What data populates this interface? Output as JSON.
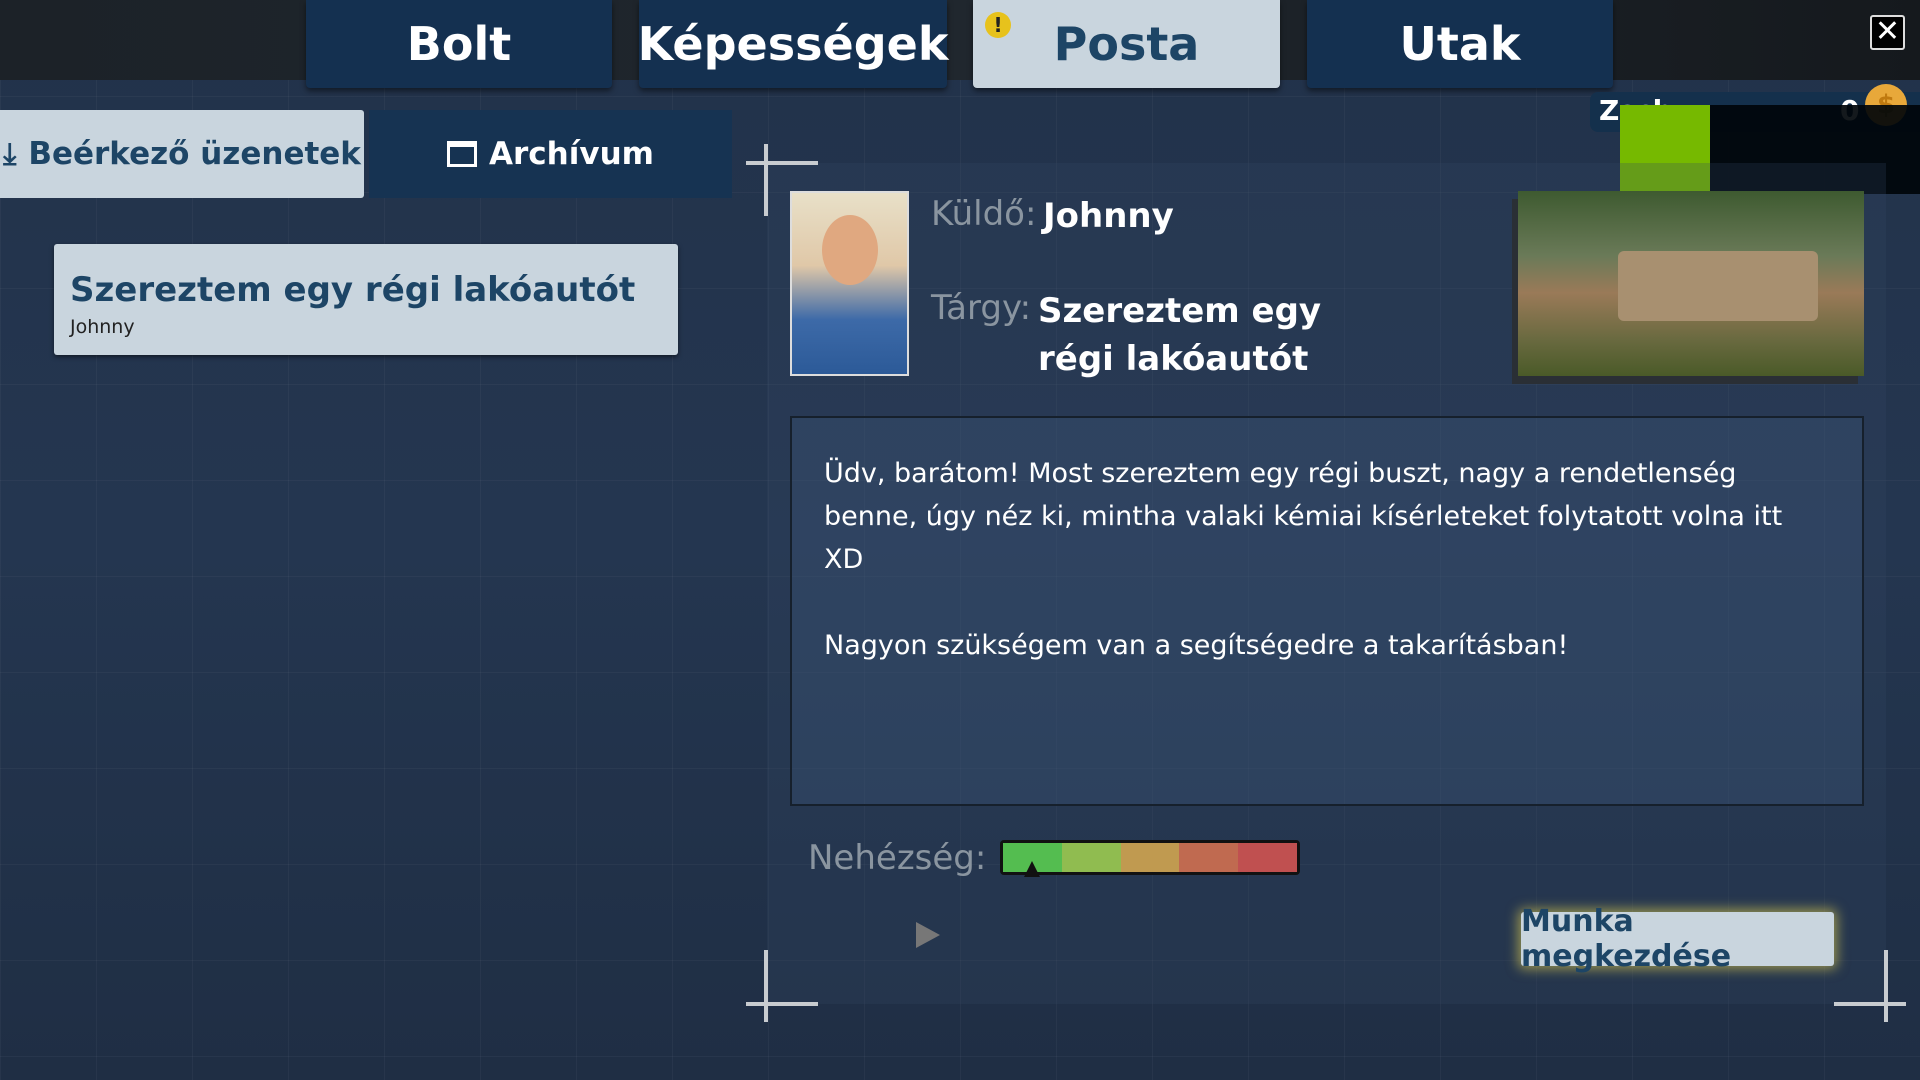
{
  "top_tabs": [
    {
      "label": "Bolt"
    },
    {
      "label": "Képességek"
    },
    {
      "label": "Posta",
      "active": true,
      "alert": "!"
    },
    {
      "label": "Utak"
    }
  ],
  "close_icon": "close-icon",
  "player": {
    "name": "Zsch",
    "money": "0",
    "coin_icon": "coin-icon"
  },
  "sub_tabs": {
    "inbox": "Beérkező üzenetek",
    "archive": "Archívum"
  },
  "messages": [
    {
      "subject": "Szereztem egy régi lakóautót",
      "sender": "Johnny"
    }
  ],
  "detail": {
    "sender_label": "Küldő:",
    "sender": "Johnny",
    "subject_label": "Tárgy:",
    "subject": "Szereztem egy régi lakóautót",
    "body": [
      "Üdv, barátom! Most szereztem egy régi buszt, nagy a rendetlenség benne, úgy néz ki, mintha valaki kémiai kísérleteket folytatott volna itt XD",
      "Nagyon szükségem van a segítségedre a takarításban!"
    ],
    "difficulty_label": "Nehézség:",
    "difficulty_level": 0.1,
    "difficulty_colors": [
      "#54bd50",
      "#90bc50",
      "#c09a50",
      "#c06a50",
      "#c05050"
    ],
    "start_button": "Munka megkezdése"
  },
  "colors": {
    "active_tab": "#c9d5de",
    "tab": "#143050",
    "accent_text": "#1d4566",
    "overlay_green": "#76b900"
  }
}
